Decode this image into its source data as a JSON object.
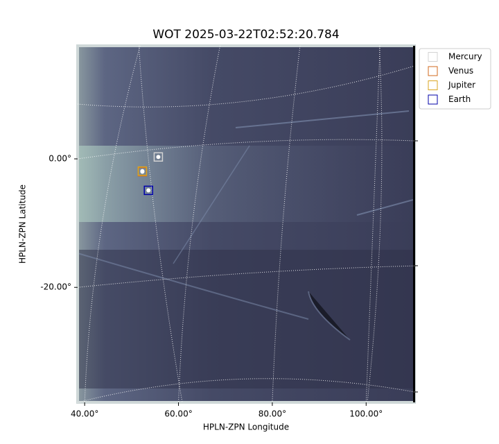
{
  "chart_data": {
    "type": "image",
    "title": "WOT 2025-03-22T02:52:20.784",
    "x_label": "HPLN-ZPN Longitude",
    "y_label": "HPLN-ZPN Latitude",
    "xlim": [
      38.5,
      110.3
    ],
    "ylim": [
      -37.9,
      17.6
    ],
    "xticks": [
      {
        "value": 40,
        "label": "40.00°"
      },
      {
        "value": 60,
        "label": "60.00°"
      },
      {
        "value": 80,
        "label": "80.00°"
      },
      {
        "value": 100,
        "label": "100.00°"
      }
    ],
    "yticks": [
      {
        "value": 0,
        "label": "0.00°"
      },
      {
        "value": -20,
        "label": "-20.00°"
      }
    ],
    "grid": true,
    "legend": "upper right",
    "series": [
      {
        "name": "Mercury",
        "color": "#d3d3d3",
        "x": [
          55.7
        ],
        "values": [
          0.3
        ]
      },
      {
        "name": "Venus",
        "color": "#d2691e",
        "x": [
          52.3
        ],
        "values": [
          -2.0
        ]
      },
      {
        "name": "Jupiter",
        "color": "#daa520",
        "x": [
          52.3
        ],
        "values": [
          -1.9
        ]
      },
      {
        "name": "Earth",
        "color": "#0000aa",
        "x": [
          53.6
        ],
        "values": [
          -4.9
        ]
      }
    ]
  }
}
